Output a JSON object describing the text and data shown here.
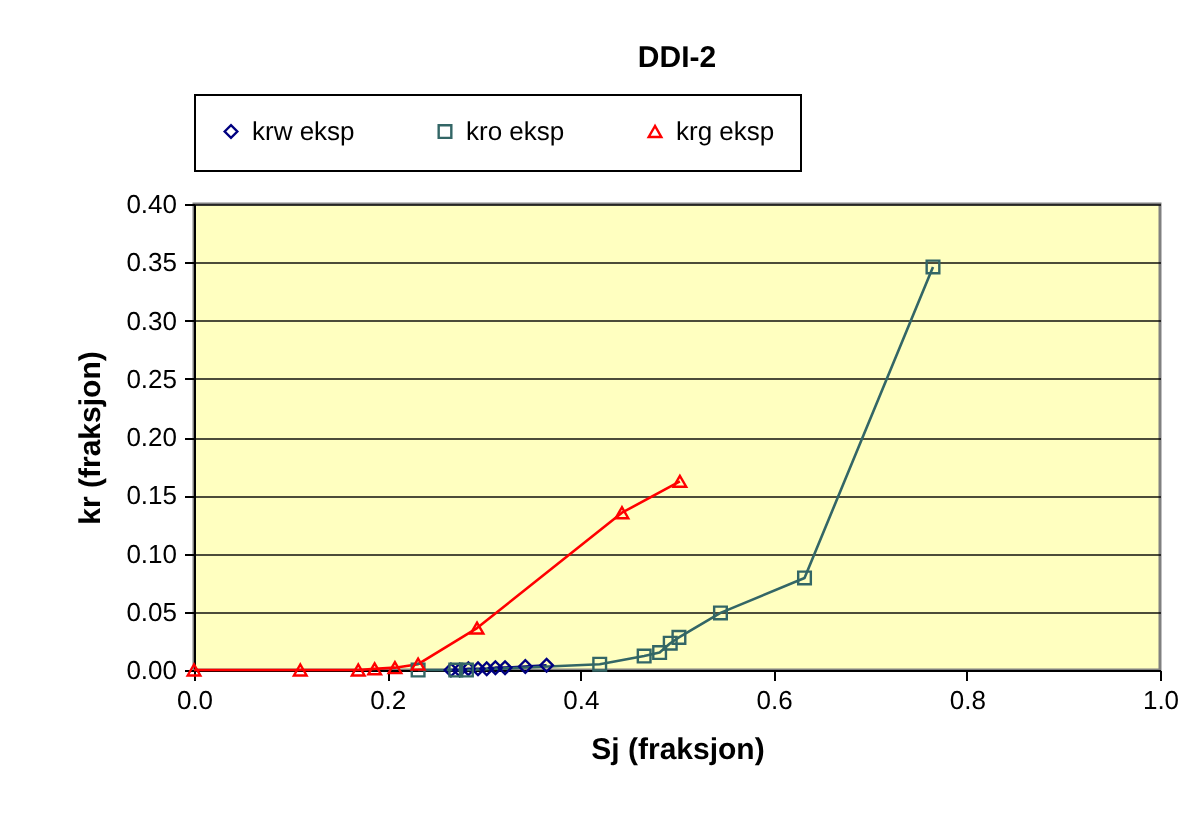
{
  "chart_data": {
    "type": "line",
    "title": "DDI-2",
    "xlabel": "Sj (fraksjon)",
    "ylabel": "kr (fraksjon)",
    "xlim": [
      0,
      1
    ],
    "ylim": [
      0,
      0.4
    ],
    "xticks": [
      {
        "value": 0,
        "label": "0.0"
      },
      {
        "value": 0.2,
        "label": "0.2"
      },
      {
        "value": 0.4,
        "label": "0.4"
      },
      {
        "value": 0.6,
        "label": "0.6"
      },
      {
        "value": 0.8,
        "label": "0.8"
      },
      {
        "value": 1,
        "label": "1.0"
      }
    ],
    "yticks": [
      {
        "value": 0,
        "label": "0.00"
      },
      {
        "value": 0.05,
        "label": "0.05"
      },
      {
        "value": 0.1,
        "label": "0.10"
      },
      {
        "value": 0.15,
        "label": "0.15"
      },
      {
        "value": 0.2,
        "label": "0.20"
      },
      {
        "value": 0.25,
        "label": "0.25"
      },
      {
        "value": 0.3,
        "label": "0.30"
      },
      {
        "value": 0.35,
        "label": "0.35"
      },
      {
        "value": 0.4,
        "label": "0.40"
      }
    ],
    "grid": "y",
    "legend": "top",
    "series": [
      {
        "name": "krw eksp",
        "color": "#000080",
        "marker": "diamond",
        "x": [
          0.266,
          0.275,
          0.284,
          0.294,
          0.303,
          0.312,
          0.322,
          0.343,
          0.365
        ],
        "values": [
          0.0,
          0.0,
          0.001,
          0.001,
          0.001,
          0.002,
          0.002,
          0.003,
          0.004
        ]
      },
      {
        "name": "kro eksp",
        "color": "#336666",
        "marker": "square",
        "x": [
          0.232,
          0.271,
          0.282,
          0.42,
          0.466,
          0.482,
          0.493,
          0.502,
          0.545,
          0.632,
          0.765
        ],
        "values": [
          0.0,
          0.0,
          0.0,
          0.005,
          0.012,
          0.015,
          0.023,
          0.028,
          0.049,
          0.079,
          0.346
        ]
      },
      {
        "name": "krg eksp",
        "color": "#ff0000",
        "marker": "triangle",
        "x": [
          0,
          0.11,
          0.17,
          0.187,
          0.208,
          0.232,
          0.293,
          0.443,
          0.503
        ],
        "values": [
          0,
          0,
          0,
          0.001,
          0.002,
          0.005,
          0.036,
          0.135,
          0.162
        ]
      }
    ]
  }
}
